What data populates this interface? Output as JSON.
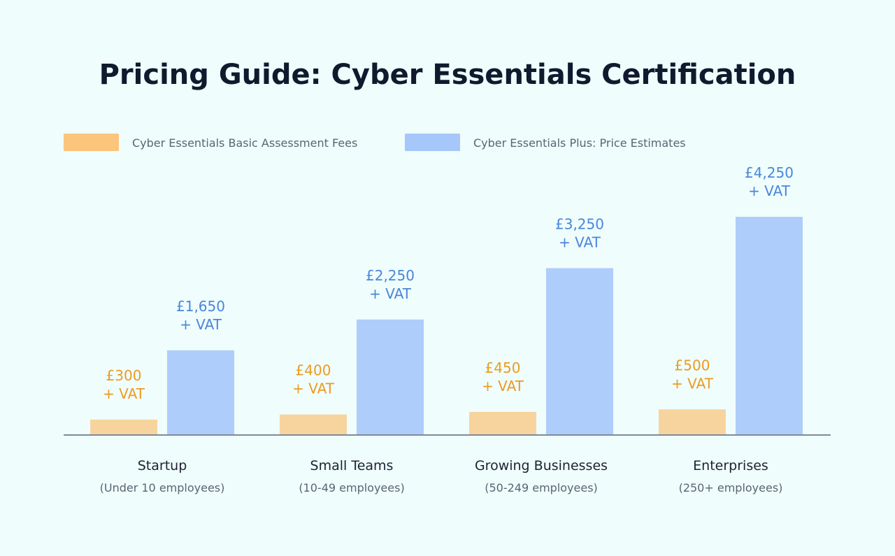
{
  "chart_data": {
    "type": "bar",
    "title": "Pricing Guide: Cyber Essentials Certification",
    "categories": [
      "Startup",
      "Small Teams",
      "Growing Businesses",
      "Enterprises"
    ],
    "category_subtitles": [
      "(Under 10 employees)",
      "(10-49 employees)",
      "(50-249 employees)",
      "(250+ employees)"
    ],
    "series": [
      {
        "name": "Cyber Essentials Basic Assessment Fees",
        "values": [
          300,
          400,
          450,
          500
        ],
        "amount_labels": [
          "£300",
          "£400",
          "£450",
          "£500"
        ],
        "suffix_label": "+ VAT",
        "bar_color": "#f7d49e",
        "legend_color": "#fbc57c",
        "label_color": "#ee9a1f"
      },
      {
        "name": "Cyber Essentials Plus: Price Estimates",
        "values": [
          1650,
          2250,
          3250,
          4250
        ],
        "amount_labels": [
          "£1,650",
          "£2,250",
          "£3,250",
          "£4,250"
        ],
        "suffix_label": "+ VAT",
        "bar_color": "#aecdfb",
        "legend_color": "#a6c7fa",
        "label_color": "#4a86db"
      }
    ],
    "ylim": [
      0,
      4700
    ],
    "grid": false,
    "legend_position": "top-left",
    "baseline_color": "#7f8a99"
  }
}
